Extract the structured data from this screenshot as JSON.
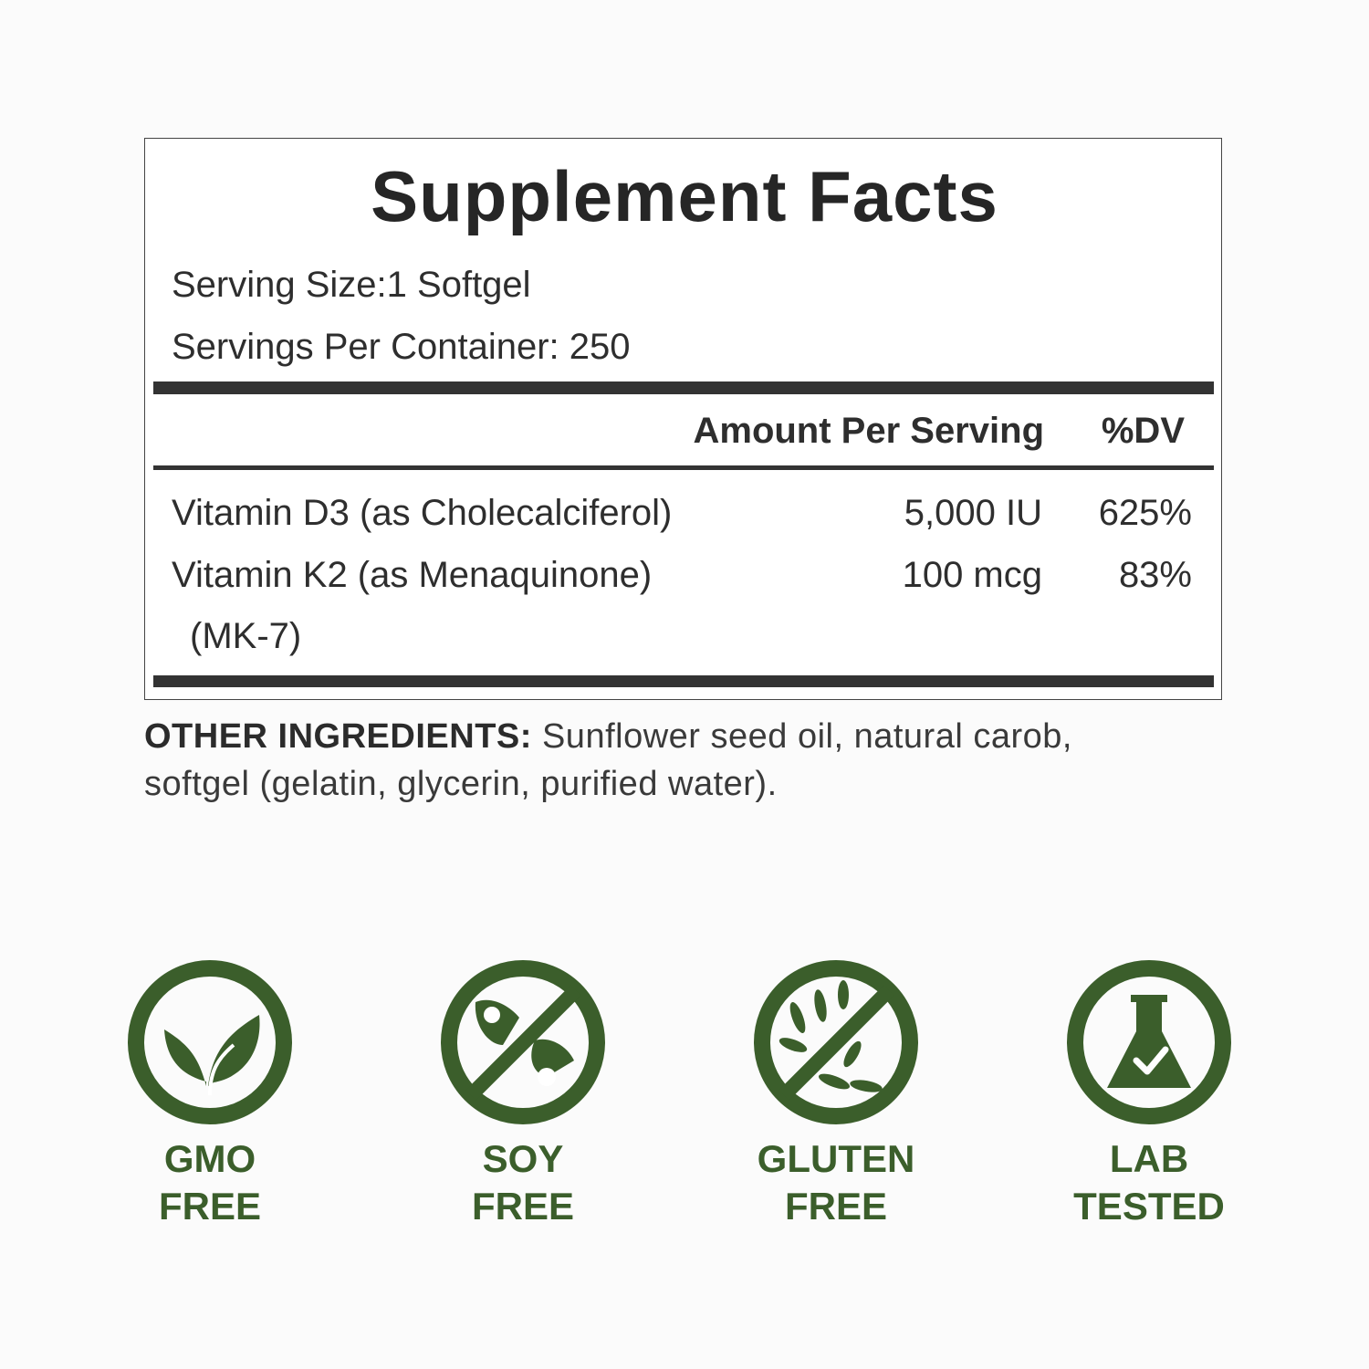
{
  "panel": {
    "title": "Supplement Facts",
    "serving_size": "Serving Size:1 Softgel",
    "servings_per_container": "Servings Per Container: 250",
    "header_amount": "Amount Per Serving",
    "header_dv": "%DV",
    "rows": [
      {
        "name": "Vitamin D3 (as Cholecalciferol)",
        "amount": "5,000 IU",
        "dv": "625%"
      },
      {
        "name": "Vitamin K2 (as Menaquinone)",
        "name_cont": "(MK-7)",
        "amount": "100 mcg",
        "dv": "83%"
      }
    ]
  },
  "other_ingredients": {
    "label": "OTHER INGREDIENTS:",
    "text_line1": " Sunflower seed oil, natural carob,",
    "text_line2": "softgel (gelatin, glycerin, purified water)."
  },
  "badges": [
    {
      "icon": "leaf-icon",
      "line1": "GMO",
      "line2": "FREE"
    },
    {
      "icon": "no-soy-icon",
      "line1": "SOY",
      "line2": "FREE"
    },
    {
      "icon": "no-wheat-icon",
      "line1": "GLUTEN",
      "line2": "FREE"
    },
    {
      "icon": "flask-check-icon",
      "line1": "LAB",
      "line2": "TESTED"
    }
  ],
  "colors": {
    "badge_green": "#3b5e2b",
    "text": "#2b2b2b"
  }
}
